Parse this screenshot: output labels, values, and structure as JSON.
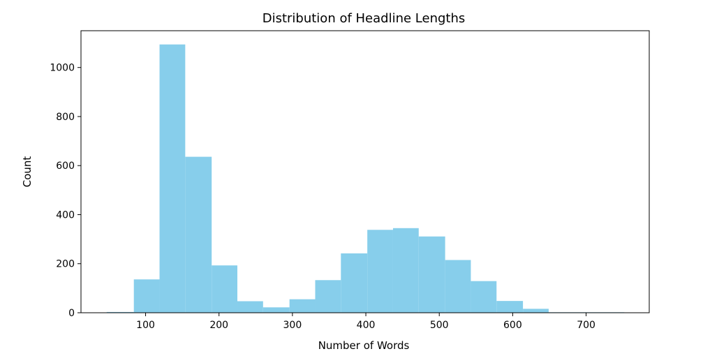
{
  "chart_data": {
    "type": "bar",
    "title": "Distribution of Headline Lengths",
    "xlabel": "Number of Words",
    "ylabel": "Count",
    "color": "#87ceeb",
    "xlim": [
      12,
      786
    ],
    "ylim": [
      0,
      1150
    ],
    "xticks": [
      "100",
      "200",
      "300",
      "400",
      "500",
      "600",
      "700"
    ],
    "yticks": [
      "0",
      "200",
      "400",
      "600",
      "800",
      "1000"
    ],
    "bins": [
      {
        "x0": 47,
        "x1": 84,
        "count": 3
      },
      {
        "x0": 84,
        "x1": 119,
        "count": 136
      },
      {
        "x0": 119,
        "x1": 154,
        "count": 1094
      },
      {
        "x0": 154,
        "x1": 190,
        "count": 636
      },
      {
        "x0": 190,
        "x1": 225,
        "count": 193
      },
      {
        "x0": 225,
        "x1": 260,
        "count": 47
      },
      {
        "x0": 260,
        "x1": 296,
        "count": 22
      },
      {
        "x0": 296,
        "x1": 331,
        "count": 55
      },
      {
        "x0": 331,
        "x1": 366,
        "count": 133
      },
      {
        "x0": 366,
        "x1": 402,
        "count": 242
      },
      {
        "x0": 402,
        "x1": 437,
        "count": 338
      },
      {
        "x0": 437,
        "x1": 472,
        "count": 345
      },
      {
        "x0": 472,
        "x1": 508,
        "count": 311
      },
      {
        "x0": 508,
        "x1": 543,
        "count": 215
      },
      {
        "x0": 543,
        "x1": 578,
        "count": 129
      },
      {
        "x0": 578,
        "x1": 614,
        "count": 48
      },
      {
        "x0": 614,
        "x1": 649,
        "count": 16
      },
      {
        "x0": 649,
        "x1": 684,
        "count": 2
      },
      {
        "x0": 684,
        "x1": 720,
        "count": 2
      },
      {
        "x0": 720,
        "x1": 752,
        "count": 2
      }
    ],
    "grid": false,
    "legend": "none"
  }
}
